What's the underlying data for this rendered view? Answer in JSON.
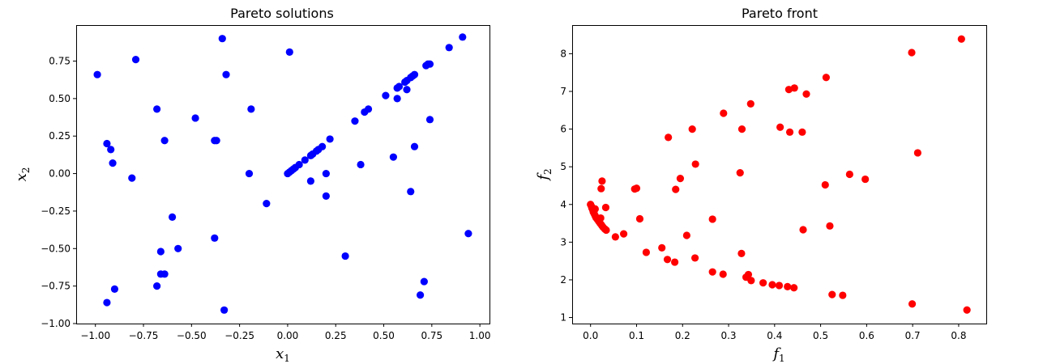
{
  "chart_data": [
    {
      "type": "scatter",
      "title": "Pareto solutions",
      "xlabel": {
        "base": "x",
        "sub": "1"
      },
      "ylabel": {
        "base": "x",
        "sub": "2"
      },
      "xlim": [
        -1.1,
        1.05
      ],
      "ylim": [
        -1.0,
        0.99
      ],
      "xticks": [
        -1.0,
        -0.75,
        -0.5,
        -0.25,
        0.0,
        0.25,
        0.5,
        0.75,
        1.0
      ],
      "xtick_labels": [
        "−1.00",
        "−0.75",
        "−0.50",
        "−0.25",
        "0.00",
        "0.25",
        "0.50",
        "0.75",
        "1.00"
      ],
      "yticks": [
        -1.0,
        -0.75,
        -0.5,
        -0.25,
        0.0,
        0.25,
        0.5,
        0.75
      ],
      "ytick_labels": [
        "−1.00",
        "−0.75",
        "−0.50",
        "−0.25",
        "0.00",
        "0.25",
        "0.50",
        "0.75"
      ],
      "grid": false,
      "color": "#0000ff",
      "points": [
        [
          -0.99,
          0.66
        ],
        [
          -0.79,
          0.76
        ],
        [
          -0.34,
          0.9
        ],
        [
          0.01,
          0.81
        ],
        [
          -0.32,
          0.66
        ],
        [
          -0.68,
          0.43
        ],
        [
          -0.19,
          0.43
        ],
        [
          -0.48,
          0.37
        ],
        [
          -0.64,
          0.22
        ],
        [
          -0.38,
          0.22
        ],
        [
          -0.37,
          0.22
        ],
        [
          -0.94,
          0.2
        ],
        [
          -0.92,
          0.16
        ],
        [
          -0.91,
          0.07
        ],
        [
          -0.81,
          -0.03
        ],
        [
          -0.2,
          0.0
        ],
        [
          -0.11,
          -0.2
        ],
        [
          -0.6,
          -0.29
        ],
        [
          -0.38,
          -0.43
        ],
        [
          -0.57,
          -0.5
        ],
        [
          -0.66,
          -0.52
        ],
        [
          -0.66,
          -0.67
        ],
        [
          -0.64,
          -0.67
        ],
        [
          -0.68,
          -0.75
        ],
        [
          -0.9,
          -0.77
        ],
        [
          -0.94,
          -0.86
        ],
        [
          -0.33,
          -0.91
        ],
        [
          0.0,
          0.0
        ],
        [
          0.01,
          0.01
        ],
        [
          0.02,
          0.02
        ],
        [
          0.03,
          0.03
        ],
        [
          0.04,
          0.04
        ],
        [
          0.06,
          0.06
        ],
        [
          0.09,
          0.09
        ],
        [
          0.12,
          0.12
        ],
        [
          0.13,
          0.13
        ],
        [
          0.15,
          0.15
        ],
        [
          0.16,
          0.16
        ],
        [
          0.18,
          0.18
        ],
        [
          0.22,
          0.23
        ],
        [
          0.35,
          0.35
        ],
        [
          0.4,
          0.41
        ],
        [
          0.42,
          0.43
        ],
        [
          0.51,
          0.52
        ],
        [
          0.57,
          0.57
        ],
        [
          0.58,
          0.58
        ],
        [
          0.61,
          0.61
        ],
        [
          0.62,
          0.62
        ],
        [
          0.64,
          0.64
        ],
        [
          0.65,
          0.65
        ],
        [
          0.66,
          0.66
        ],
        [
          0.72,
          0.72
        ],
        [
          0.73,
          0.73
        ],
        [
          0.74,
          0.73
        ],
        [
          0.84,
          0.84
        ],
        [
          0.91,
          0.91
        ],
        [
          0.62,
          0.56
        ],
        [
          0.57,
          0.5
        ],
        [
          0.74,
          0.36
        ],
        [
          0.66,
          0.18
        ],
        [
          0.55,
          0.11
        ],
        [
          0.38,
          0.06
        ],
        [
          0.12,
          -0.05
        ],
        [
          0.2,
          0.0
        ],
        [
          0.2,
          -0.15
        ],
        [
          0.64,
          -0.12
        ],
        [
          0.94,
          -0.4
        ],
        [
          0.3,
          -0.55
        ],
        [
          0.71,
          -0.72
        ],
        [
          0.69,
          -0.81
        ]
      ]
    },
    {
      "type": "scatter",
      "title": "Pareto front",
      "xlabel": {
        "base": "f",
        "sub": "1"
      },
      "ylabel": {
        "base": "f",
        "sub": "2"
      },
      "xlim": [
        -0.04,
        0.86
      ],
      "ylim": [
        0.84,
        8.76
      ],
      "xticks": [
        0.0,
        0.1,
        0.2,
        0.3,
        0.4,
        0.5,
        0.6,
        0.7,
        0.8
      ],
      "xtick_labels": [
        "0.0",
        "0.1",
        "0.2",
        "0.3",
        "0.4",
        "0.5",
        "0.6",
        "0.7",
        "0.8"
      ],
      "yticks": [
        1,
        2,
        3,
        4,
        5,
        6,
        7,
        8
      ],
      "ytick_labels": [
        "1",
        "2",
        "3",
        "4",
        "5",
        "6",
        "7",
        "8"
      ],
      "grid": false,
      "color": "#ff0000",
      "points": [
        [
          0.0,
          4.0
        ],
        [
          0.002,
          3.95
        ],
        [
          0.003,
          3.9
        ],
        [
          0.005,
          3.85
        ],
        [
          0.006,
          3.8
        ],
        [
          0.008,
          3.75
        ],
        [
          0.01,
          3.7
        ],
        [
          0.012,
          3.65
        ],
        [
          0.015,
          3.6
        ],
        [
          0.018,
          3.55
        ],
        [
          0.021,
          3.5
        ],
        [
          0.024,
          3.45
        ],
        [
          0.027,
          3.4
        ],
        [
          0.031,
          3.35
        ],
        [
          0.034,
          3.32
        ],
        [
          0.01,
          3.88
        ],
        [
          0.018,
          3.62
        ],
        [
          0.022,
          3.64
        ],
        [
          0.023,
          4.42
        ],
        [
          0.025,
          4.62
        ],
        [
          0.033,
          3.92
        ],
        [
          0.054,
          3.14
        ],
        [
          0.072,
          3.22
        ],
        [
          0.096,
          4.41
        ],
        [
          0.1,
          4.43
        ],
        [
          0.107,
          3.62
        ],
        [
          0.121,
          2.73
        ],
        [
          0.155,
          2.85
        ],
        [
          0.167,
          2.54
        ],
        [
          0.183,
          2.47
        ],
        [
          0.169,
          5.78
        ],
        [
          0.185,
          4.4
        ],
        [
          0.195,
          4.69
        ],
        [
          0.209,
          3.18
        ],
        [
          0.221,
          6.0
        ],
        [
          0.227,
          2.58
        ],
        [
          0.228,
          5.07
        ],
        [
          0.265,
          2.21
        ],
        [
          0.265,
          3.61
        ],
        [
          0.288,
          2.15
        ],
        [
          0.289,
          6.42
        ],
        [
          0.325,
          4.84
        ],
        [
          0.328,
          2.7
        ],
        [
          0.329,
          6.0
        ],
        [
          0.338,
          2.07
        ],
        [
          0.343,
          2.14
        ],
        [
          0.349,
          1.98
        ],
        [
          0.348,
          6.67
        ],
        [
          0.375,
          1.92
        ],
        [
          0.395,
          1.87
        ],
        [
          0.41,
          1.85
        ],
        [
          0.412,
          6.05
        ],
        [
          0.428,
          1.82
        ],
        [
          0.431,
          7.05
        ],
        [
          0.433,
          5.92
        ],
        [
          0.442,
          1.79
        ],
        [
          0.443,
          7.09
        ],
        [
          0.46,
          5.92
        ],
        [
          0.462,
          3.33
        ],
        [
          0.469,
          6.93
        ],
        [
          0.51,
          4.52
        ],
        [
          0.512,
          7.37
        ],
        [
          0.52,
          3.43
        ],
        [
          0.525,
          1.61
        ],
        [
          0.548,
          1.59
        ],
        [
          0.563,
          4.8
        ],
        [
          0.597,
          4.67
        ],
        [
          0.698,
          8.03
        ],
        [
          0.699,
          1.36
        ],
        [
          0.711,
          5.37
        ],
        [
          0.806,
          8.39
        ],
        [
          0.818,
          1.2
        ]
      ]
    }
  ]
}
